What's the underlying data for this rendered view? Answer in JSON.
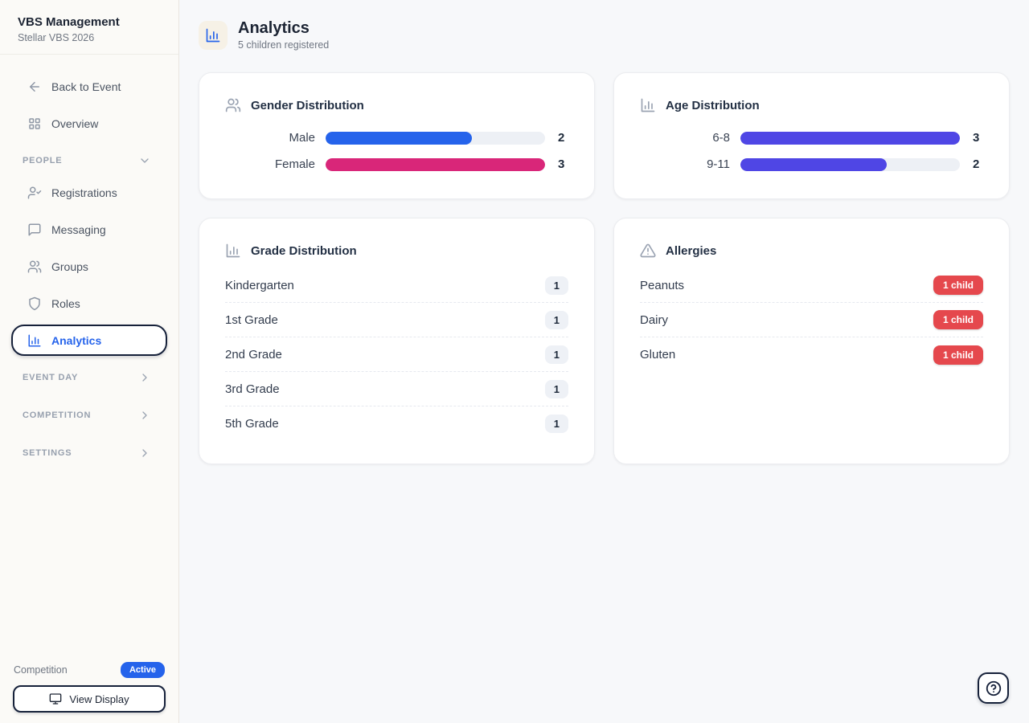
{
  "colors": {
    "accent_blue": "#2563eb",
    "female_pink": "#d92679",
    "age_purple": "#4f46e5",
    "allergy_red": "#e5484d",
    "dark_navy": "#16213a"
  },
  "sidebar": {
    "title": "VBS Management",
    "subtitle": "Stellar VBS 2026",
    "back_label": "Back to Event",
    "overview_label": "Overview",
    "people_header": "PEOPLE",
    "people_items": [
      {
        "label": "Registrations",
        "icon": "user-check-icon"
      },
      {
        "label": "Messaging",
        "icon": "message-icon"
      },
      {
        "label": "Groups",
        "icon": "users-icon"
      },
      {
        "label": "Roles",
        "icon": "shield-icon"
      },
      {
        "label": "Analytics",
        "icon": "bar-chart-icon",
        "active": true
      }
    ],
    "collapsed_sections": [
      {
        "label": "EVENT DAY"
      },
      {
        "label": "COMPETITION"
      },
      {
        "label": "SETTINGS"
      }
    ],
    "footer": {
      "competition_label": "Competition",
      "status_badge": "Active",
      "view_display_label": "View Display"
    }
  },
  "header": {
    "title": "Analytics",
    "subtitle": "5 children registered"
  },
  "cards": {
    "gender": {
      "title": "Gender Distribution",
      "rows": [
        {
          "label": "Male",
          "value": "2",
          "percent": 66.7,
          "color": "#2563eb"
        },
        {
          "label": "Female",
          "value": "3",
          "percent": 100,
          "color": "#d92679"
        }
      ]
    },
    "age": {
      "title": "Age Distribution",
      "rows": [
        {
          "label": "6-8",
          "value": "3",
          "percent": 100,
          "color": "#4f46e5"
        },
        {
          "label": "9-11",
          "value": "2",
          "percent": 66.7,
          "color": "#4f46e5"
        }
      ]
    },
    "grade": {
      "title": "Grade Distribution",
      "rows": [
        {
          "label": "Kindergarten",
          "count": "1"
        },
        {
          "label": "1st Grade",
          "count": "1"
        },
        {
          "label": "2nd Grade",
          "count": "1"
        },
        {
          "label": "3rd Grade",
          "count": "1"
        },
        {
          "label": "5th Grade",
          "count": "1"
        }
      ]
    },
    "allergies": {
      "title": "Allergies",
      "rows": [
        {
          "label": "Peanuts",
          "badge": "1 child"
        },
        {
          "label": "Dairy",
          "badge": "1 child"
        },
        {
          "label": "Gluten",
          "badge": "1 child"
        }
      ]
    }
  },
  "chart_data": [
    {
      "type": "bar",
      "title": "Gender Distribution",
      "categories": [
        "Male",
        "Female"
      ],
      "values": [
        2,
        3
      ]
    },
    {
      "type": "bar",
      "title": "Age Distribution",
      "categories": [
        "6-8",
        "9-11"
      ],
      "values": [
        3,
        2
      ]
    },
    {
      "type": "table",
      "title": "Grade Distribution",
      "categories": [
        "Kindergarten",
        "1st Grade",
        "2nd Grade",
        "3rd Grade",
        "5th Grade"
      ],
      "values": [
        1,
        1,
        1,
        1,
        1
      ]
    },
    {
      "type": "table",
      "title": "Allergies",
      "categories": [
        "Peanuts",
        "Dairy",
        "Gluten"
      ],
      "values": [
        1,
        1,
        1
      ]
    }
  ]
}
